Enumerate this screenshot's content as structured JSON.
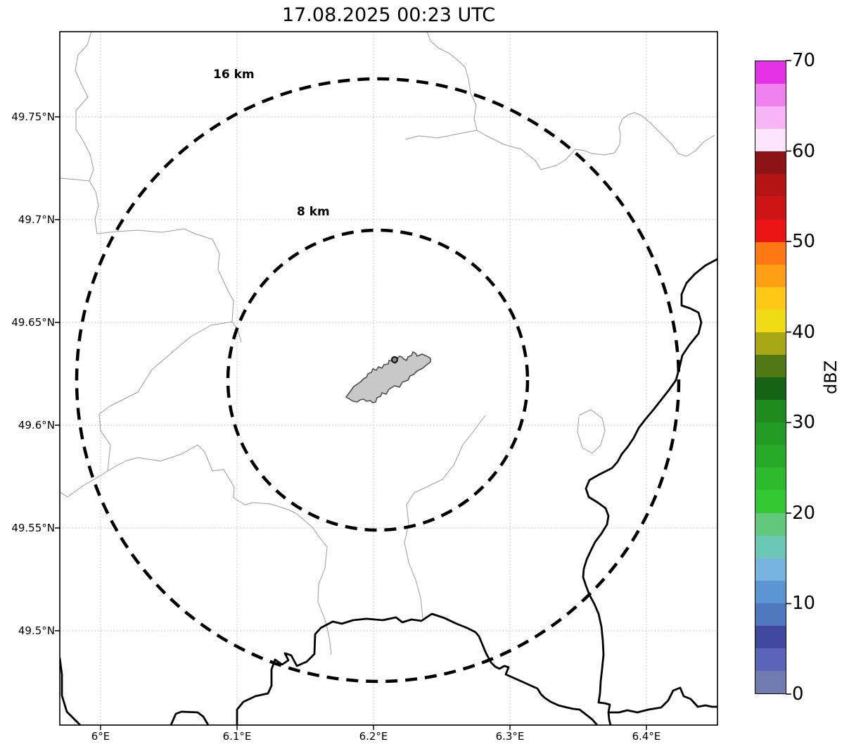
{
  "title": "17.08.2025 00:23 UTC",
  "map": {
    "range_rings": [
      {
        "label": "16 km"
      },
      {
        "label": "8 km"
      }
    ],
    "features": {
      "airport_polygon": "Luxembourg airport outline (gray filled shape at radar site)",
      "thin_gray_lines": "municipal boundaries",
      "thick_black_lines": "country borders / Moselle river"
    }
  },
  "axes": {
    "lat_ticks": [
      {
        "label": "49.75°N",
        "value": 49.75
      },
      {
        "label": "49.7°N",
        "value": 49.7
      },
      {
        "label": "49.65°N",
        "value": 49.65
      },
      {
        "label": "49.6°N",
        "value": 49.6
      },
      {
        "label": "49.55°N",
        "value": 49.55
      },
      {
        "label": "49.5°N",
        "value": 49.5
      }
    ],
    "lon_ticks": [
      {
        "label": "6°E",
        "value": 6.0
      },
      {
        "label": "6.1°E",
        "value": 6.1
      },
      {
        "label": "6.2°E",
        "value": 6.2
      },
      {
        "label": "6.3°E",
        "value": 6.3
      },
      {
        "label": "6.4°E",
        "value": 6.4
      }
    ]
  },
  "colorbar": {
    "label": "dBZ",
    "ticks": [
      {
        "label": "70",
        "value": 70
      },
      {
        "label": "60",
        "value": 60
      },
      {
        "label": "50",
        "value": 50
      },
      {
        "label": "40",
        "value": 40
      },
      {
        "label": "30",
        "value": 30
      },
      {
        "label": "20",
        "value": 20
      },
      {
        "label": "10",
        "value": 10
      },
      {
        "label": "0",
        "value": 0
      }
    ],
    "segment_step_dbz": 2.5,
    "segment_colors_bottom_to_top": [
      "#707cb0",
      "#5a64b8",
      "#4048a0",
      "#5078be",
      "#5c96d2",
      "#78b4e0",
      "#6cc8b4",
      "#64c87c",
      "#32c832",
      "#2dba2d",
      "#28aa28",
      "#239a23",
      "#1e8a1e",
      "#156415",
      "#507814",
      "#a8a814",
      "#f0dc14",
      "#ffc814",
      "#ffa014",
      "#ff7814",
      "#eb1414",
      "#cd1414",
      "#b41414",
      "#8c1414",
      "#fde6fd",
      "#f7b4f7",
      "#f082f0",
      "#e632e6"
    ]
  },
  "chart_data": {
    "type": "map",
    "title": "17.08.2025 00:23 UTC",
    "lon_range": [
      5.97,
      6.452
    ],
    "lat_range": [
      49.454,
      49.791
    ],
    "lon_tick_values": [
      6.0,
      6.1,
      6.2,
      6.3,
      6.4
    ],
    "lat_tick_values": [
      49.5,
      49.55,
      49.6,
      49.65,
      49.7,
      49.75
    ],
    "radar_site": {
      "lon": 6.203,
      "lat": 49.621
    },
    "range_rings_km": [
      8,
      16
    ],
    "colorbar_scale": {
      "label": "dBZ",
      "min": 0,
      "max": 70,
      "tick_step": 10,
      "segment_step": 2.5
    },
    "reflectivity_echoes": [],
    "grid": "dotted lat/lon graticule"
  }
}
